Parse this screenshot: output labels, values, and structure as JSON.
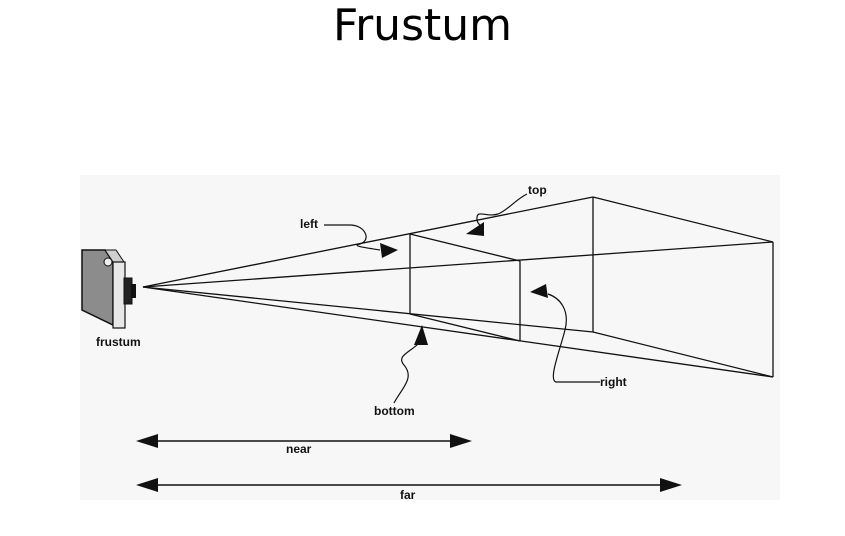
{
  "slide": {
    "title": "Frustum"
  },
  "diagram": {
    "labels": {
      "top": "top",
      "left": "left",
      "right": "right",
      "bottom": "bottom",
      "camera": "frustum",
      "near": "near",
      "far": "far"
    },
    "colors": {
      "line": "#111111",
      "background": "#f7f7f7",
      "camera_body": "#9a9a9a"
    }
  }
}
